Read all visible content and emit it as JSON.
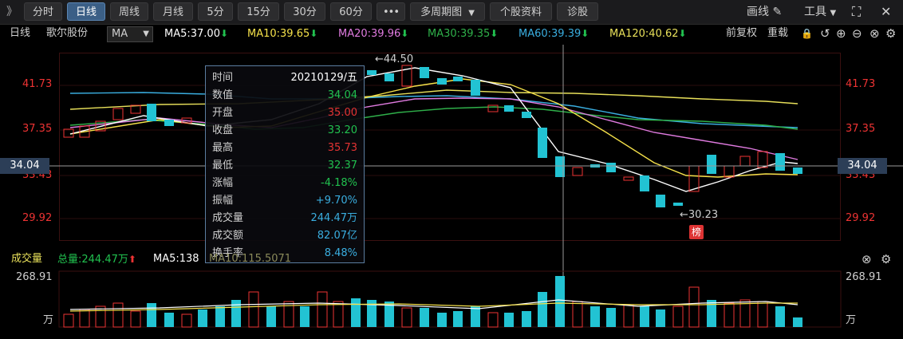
{
  "toolbar": {
    "expand_glyph": "》",
    "periods": [
      "分时",
      "日线",
      "周线",
      "月线",
      "5分",
      "15分",
      "30分",
      "60分"
    ],
    "active_period": "日线",
    "more": "•••",
    "multi_period": "多周期图",
    "stock_info": "个股资料",
    "diagnose": "诊股",
    "draw_line": "画线",
    "tools": "工具",
    "fullscreen_icon": "expand-icon",
    "close_icon": "close-icon"
  },
  "info_row": {
    "period": "日线",
    "stock_name": "歌尔股份",
    "indicator": "MA",
    "ma5": "MA5:37.00",
    "ma10": "MA10:39.65",
    "ma20": "MA20:39.96",
    "ma30": "MA30:39.35",
    "ma60": "MA60:39.39",
    "ma120": "MA120:40.62",
    "adjust": "前复权",
    "reload": "重载",
    "colors": {
      "ma5": "#ffffff",
      "ma10": "#f5e14a",
      "ma20": "#e07be0",
      "ma30": "#2fb04a",
      "ma60": "#3aaee0",
      "ma120": "#e8e05a"
    }
  },
  "price_axis": {
    "left_labels": [
      "41.73",
      "37.35",
      "33.43",
      "29.92"
    ],
    "right_labels": [
      "41.73",
      "37.35",
      "33.43",
      "29.92"
    ],
    "crosshair_value": "34.04",
    "high_note": "←44.50",
    "low_note": "←30.23",
    "rank_badge": "榜"
  },
  "tooltip": {
    "rows": [
      {
        "k": "时间",
        "v": "20210129/五",
        "c": "#ffffff"
      },
      {
        "k": "数值",
        "v": "34.04",
        "c": "#21c14f"
      },
      {
        "k": "开盘",
        "v": "35.00",
        "c": "#e33333"
      },
      {
        "k": "收盘",
        "v": "33.20",
        "c": "#21c14f"
      },
      {
        "k": "最高",
        "v": "35.73",
        "c": "#e33333"
      },
      {
        "k": "最低",
        "v": "32.37",
        "c": "#21c14f"
      },
      {
        "k": "涨幅",
        "v": "-4.18%",
        "c": "#21c14f"
      },
      {
        "k": "振幅",
        "v": "+9.70%",
        "c": "#3aaee0"
      },
      {
        "k": "成交量",
        "v": "244.47万",
        "c": "#3aaee0"
      },
      {
        "k": "成交额",
        "v": "82.07亿",
        "c": "#3aaee0"
      },
      {
        "k": "换手率",
        "v": "8.48%",
        "c": "#3aaee0"
      }
    ]
  },
  "volume": {
    "label": "成交量",
    "total": "总量:244.47万",
    "ma5": "MA5:138",
    "ma10": "MA10:115.5071",
    "max_label": "268.91",
    "unit": "万"
  },
  "chart_data": {
    "type": "candlestick",
    "price_axis_ticks": [
      41.73,
      37.35,
      33.43,
      29.92
    ],
    "annotations": {
      "high": 44.5,
      "low": 30.23,
      "crosshair": 34.04
    },
    "volume_axis_max": 268.91,
    "volume_unit": "万"
  }
}
